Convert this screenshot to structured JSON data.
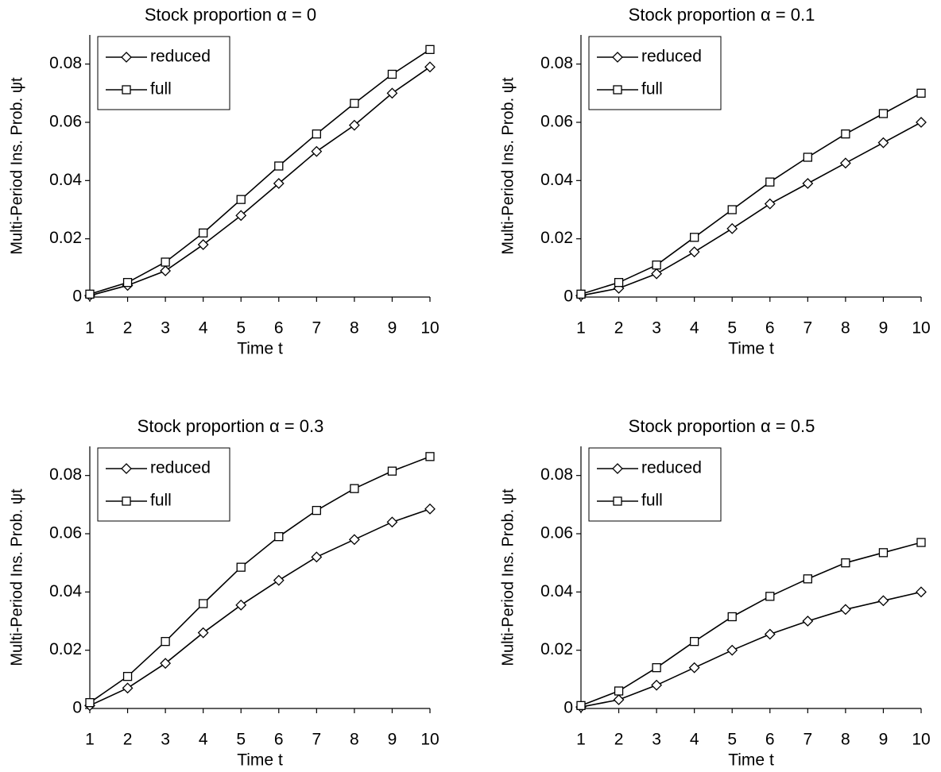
{
  "chart_data": [
    {
      "type": "line",
      "title": "Stock proportion α = 0",
      "xlabel": "Time t",
      "ylabel": "Multi-Period Ins. Prob. ψt",
      "x": [
        1,
        2,
        3,
        4,
        5,
        6,
        7,
        8,
        9,
        10
      ],
      "xlim": [
        1,
        10
      ],
      "xticks": [
        1,
        2,
        3,
        4,
        5,
        6,
        7,
        8,
        9,
        10
      ],
      "ylim": [
        0,
        0.09
      ],
      "yticks": [
        0,
        0.02,
        0.04,
        0.06,
        0.08
      ],
      "legend": "upper left",
      "series": [
        {
          "name": "reduced",
          "color": "#000000",
          "marker": "diamond",
          "values": [
            0.0005,
            0.004,
            0.009,
            0.018,
            0.028,
            0.039,
            0.05,
            0.059,
            0.07,
            0.079
          ]
        },
        {
          "name": "full",
          "color": "#000000",
          "marker": "square",
          "values": [
            0.001,
            0.005,
            0.012,
            0.022,
            0.0335,
            0.045,
            0.056,
            0.0665,
            0.0765,
            0.085
          ]
        }
      ]
    },
    {
      "type": "line",
      "title": "Stock proportion α = 0.1",
      "xlabel": "Time t",
      "ylabel": "Multi-Period Ins. Prob. ψt",
      "x": [
        1,
        2,
        3,
        4,
        5,
        6,
        7,
        8,
        9,
        10
      ],
      "xlim": [
        1,
        10
      ],
      "xticks": [
        1,
        2,
        3,
        4,
        5,
        6,
        7,
        8,
        9,
        10
      ],
      "ylim": [
        0,
        0.09
      ],
      "yticks": [
        0,
        0.02,
        0.04,
        0.06,
        0.08
      ],
      "legend": "upper left",
      "series": [
        {
          "name": "reduced",
          "color": "#000000",
          "marker": "diamond",
          "values": [
            0.0005,
            0.003,
            0.008,
            0.0155,
            0.0235,
            0.032,
            0.039,
            0.046,
            0.053,
            0.06
          ]
        },
        {
          "name": "full",
          "color": "#000000",
          "marker": "square",
          "values": [
            0.001,
            0.005,
            0.011,
            0.0205,
            0.03,
            0.0395,
            0.048,
            0.056,
            0.063,
            0.07
          ]
        }
      ]
    },
    {
      "type": "line",
      "title": "Stock proportion α = 0.3",
      "xlabel": "Time t",
      "ylabel": "Multi-Period Ins. Prob. ψt",
      "x": [
        1,
        2,
        3,
        4,
        5,
        6,
        7,
        8,
        9,
        10
      ],
      "xlim": [
        1,
        10
      ],
      "xticks": [
        1,
        2,
        3,
        4,
        5,
        6,
        7,
        8,
        9,
        10
      ],
      "ylim": [
        0,
        0.09
      ],
      "yticks": [
        0,
        0.02,
        0.04,
        0.06,
        0.08
      ],
      "legend": "upper left",
      "series": [
        {
          "name": "reduced",
          "color": "#000000",
          "marker": "diamond",
          "values": [
            0.001,
            0.007,
            0.0155,
            0.026,
            0.0355,
            0.044,
            0.052,
            0.058,
            0.064,
            0.0685
          ]
        },
        {
          "name": "full",
          "color": "#000000",
          "marker": "square",
          "values": [
            0.002,
            0.011,
            0.023,
            0.036,
            0.0485,
            0.059,
            0.068,
            0.0755,
            0.0815,
            0.0865
          ]
        }
      ]
    },
    {
      "type": "line",
      "title": "Stock proportion α = 0.5",
      "xlabel": "Time t",
      "ylabel": "Multi-Period Ins. Prob. ψt",
      "x": [
        1,
        2,
        3,
        4,
        5,
        6,
        7,
        8,
        9,
        10
      ],
      "xlim": [
        1,
        10
      ],
      "xticks": [
        1,
        2,
        3,
        4,
        5,
        6,
        7,
        8,
        9,
        10
      ],
      "ylim": [
        0,
        0.09
      ],
      "yticks": [
        0,
        0.02,
        0.04,
        0.06,
        0.08
      ],
      "legend": "upper left",
      "series": [
        {
          "name": "reduced",
          "color": "#000000",
          "marker": "diamond",
          "values": [
            0.0005,
            0.003,
            0.008,
            0.014,
            0.02,
            0.0255,
            0.03,
            0.034,
            0.037,
            0.04
          ]
        },
        {
          "name": "full",
          "color": "#000000",
          "marker": "square",
          "values": [
            0.001,
            0.006,
            0.014,
            0.023,
            0.0315,
            0.0385,
            0.0445,
            0.05,
            0.0535,
            0.057
          ]
        }
      ]
    }
  ]
}
